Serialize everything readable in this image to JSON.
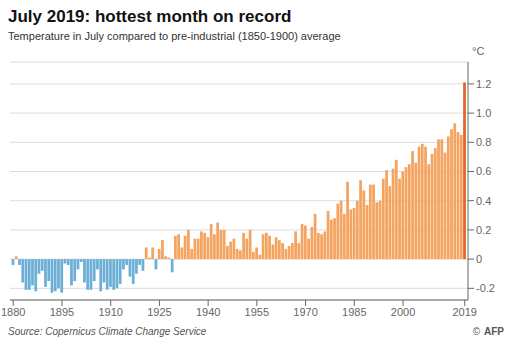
{
  "chart_data": {
    "type": "bar",
    "title": "July 2019: hottest month on record",
    "subtitle": "Temperature in July compared to pre-industrial (1850-1900) average",
    "ylabel": "°C",
    "source": "Source: Copernicus Climate Change Service",
    "annotations": [
      "©",
      "AFP"
    ],
    "xlim": [
      1879,
      2020
    ],
    "ylim": [
      -0.28,
      1.35
    ],
    "xticks": [
      1880,
      1895,
      1910,
      1925,
      1940,
      1955,
      1970,
      1985,
      2000,
      2019
    ],
    "yticks": [
      -0.2,
      0,
      0.2,
      0.4,
      0.6,
      0.8,
      {
        "value": 1.0,
        "label": "1.0"
      },
      1.2
    ],
    "grid": true,
    "x": [
      1880,
      1881,
      1882,
      1883,
      1884,
      1885,
      1886,
      1887,
      1888,
      1889,
      1890,
      1891,
      1892,
      1893,
      1894,
      1895,
      1896,
      1897,
      1898,
      1899,
      1900,
      1901,
      1902,
      1903,
      1904,
      1905,
      1906,
      1907,
      1908,
      1909,
      1910,
      1911,
      1912,
      1913,
      1914,
      1915,
      1916,
      1917,
      1918,
      1919,
      1920,
      1921,
      1922,
      1923,
      1924,
      1925,
      1926,
      1927,
      1928,
      1929,
      1930,
      1931,
      1932,
      1933,
      1934,
      1935,
      1936,
      1937,
      1938,
      1939,
      1940,
      1941,
      1942,
      1943,
      1944,
      1945,
      1946,
      1947,
      1948,
      1949,
      1950,
      1951,
      1952,
      1953,
      1954,
      1955,
      1956,
      1957,
      1958,
      1959,
      1960,
      1961,
      1962,
      1963,
      1964,
      1965,
      1966,
      1967,
      1968,
      1969,
      1970,
      1971,
      1972,
      1973,
      1974,
      1975,
      1976,
      1977,
      1978,
      1979,
      1980,
      1981,
      1982,
      1983,
      1984,
      1985,
      1986,
      1987,
      1988,
      1989,
      1990,
      1991,
      1992,
      1993,
      1994,
      1995,
      1996,
      1997,
      1998,
      1999,
      2000,
      2001,
      2002,
      2003,
      2004,
      2005,
      2006,
      2007,
      2008,
      2009,
      2010,
      2011,
      2012,
      2013,
      2014,
      2015,
      2016,
      2017,
      2018,
      2019
    ],
    "values": [
      -0.04,
      0.02,
      -0.04,
      -0.16,
      -0.21,
      -0.21,
      -0.18,
      -0.22,
      -0.1,
      -0.08,
      -0.19,
      -0.15,
      -0.23,
      -0.22,
      -0.2,
      -0.23,
      -0.03,
      -0.04,
      -0.18,
      -0.15,
      -0.07,
      -0.02,
      -0.16,
      -0.21,
      -0.21,
      -0.15,
      -0.07,
      -0.22,
      -0.16,
      -0.21,
      -0.19,
      -0.21,
      -0.2,
      -0.17,
      -0.07,
      -0.04,
      -0.12,
      -0.17,
      -0.1,
      -0.04,
      -0.08,
      0.08,
      0.01,
      0.08,
      -0.07,
      0.07,
      0.13,
      0.02,
      0.01,
      -0.09,
      0.16,
      0.17,
      0.08,
      0.16,
      0.2,
      0.07,
      0.14,
      0.14,
      0.19,
      0.18,
      0.15,
      0.24,
      0.17,
      0.25,
      0.2,
      0.2,
      0.09,
      0.12,
      0.14,
      0.07,
      0.06,
      0.18,
      0.14,
      0.2,
      0.05,
      0.08,
      0.03,
      0.17,
      0.18,
      0.16,
      0.1,
      0.15,
      0.13,
      0.11,
      0.07,
      0.09,
      0.11,
      0.19,
      0.11,
      0.24,
      0.23,
      0.14,
      0.22,
      0.31,
      0.18,
      0.17,
      0.19,
      0.33,
      0.27,
      0.28,
      0.38,
      0.4,
      0.31,
      0.53,
      0.34,
      0.35,
      0.4,
      0.54,
      0.47,
      0.37,
      0.51,
      0.51,
      0.39,
      0.4,
      0.55,
      0.61,
      0.5,
      0.62,
      0.68,
      0.55,
      0.6,
      0.63,
      0.65,
      0.74,
      0.66,
      0.77,
      0.79,
      0.77,
      0.65,
      0.72,
      0.76,
      0.82,
      0.82,
      0.73,
      0.84,
      0.89,
      0.93,
      0.87,
      0.85,
      1.21
    ],
    "colors": [
      "#6BAED6",
      "#F4A460",
      "#6BAED6",
      "#6BAED6",
      "#6BAED6",
      "#6BAED6",
      "#6BAED6",
      "#6BAED6",
      "#6BAED6",
      "#6BAED6",
      "#6BAED6",
      "#6BAED6",
      "#6BAED6",
      "#6BAED6",
      "#6BAED6",
      "#6BAED6",
      "#6BAED6",
      "#6BAED6",
      "#6BAED6",
      "#6BAED6",
      "#6BAED6",
      "#6BAED6",
      "#6BAED6",
      "#6BAED6",
      "#6BAED6",
      "#6BAED6",
      "#6BAED6",
      "#6BAED6",
      "#6BAED6",
      "#6BAED6",
      "#6BAED6",
      "#6BAED6",
      "#6BAED6",
      "#6BAED6",
      "#6BAED6",
      "#6BAED6",
      "#6BAED6",
      "#6BAED6",
      "#6BAED6",
      "#6BAED6",
      "#6BAED6",
      "#F4A460",
      "#F4A460",
      "#F4A460",
      "#6BAED6",
      "#F4A460",
      "#F4A460",
      "#F4A460",
      "#F4A460",
      "#6BAED6",
      "#F4A460",
      "#F4A460",
      "#F4A460",
      "#F4A460",
      "#F4A460",
      "#F4A460",
      "#F4A460",
      "#F4A460",
      "#F4A460",
      "#F4A460",
      "#F4A460",
      "#F4A460",
      "#F4A460",
      "#F4A460",
      "#F4A460",
      "#F4A460",
      "#F4A460",
      "#F4A460",
      "#F4A460",
      "#F4A460",
      "#F4A460",
      "#F4A460",
      "#F4A460",
      "#F4A460",
      "#F4A460",
      "#F4A460",
      "#F4A460",
      "#F4A460",
      "#F4A460",
      "#F4A460",
      "#F4A460",
      "#F4A460",
      "#F4A460",
      "#F4A460",
      "#F4A460",
      "#F4A460",
      "#F4A460",
      "#F4A460",
      "#F4A460",
      "#F4A460",
      "#F4A460",
      "#F4A460",
      "#F4A460",
      "#F4A460",
      "#F4A460",
      "#F4A460",
      "#F4A460",
      "#F4A460",
      "#F4A460",
      "#F4A460",
      "#F4A460",
      "#F4A460",
      "#F4A460",
      "#F4A460",
      "#F4A460",
      "#F4A460",
      "#F4A460",
      "#F4A460",
      "#F4A460",
      "#F4A460",
      "#F4A460",
      "#F4A460",
      "#F4A460",
      "#F4A460",
      "#F4A460",
      "#F4A460",
      "#F4A460",
      "#F4A460",
      "#F4A460",
      "#F4A460",
      "#F4A460",
      "#F4A460",
      "#F4A460",
      "#F4A460",
      "#F4A460",
      "#F4A460",
      "#F4A460",
      "#F4A460",
      "#F4A460",
      "#F4A460",
      "#F4A460",
      "#F4A460",
      "#F4A460",
      "#F4A460",
      "#F4A460",
      "#F4A460",
      "#F4A460",
      "#F4A460",
      "#F4A460",
      "#E8622A"
    ]
  }
}
